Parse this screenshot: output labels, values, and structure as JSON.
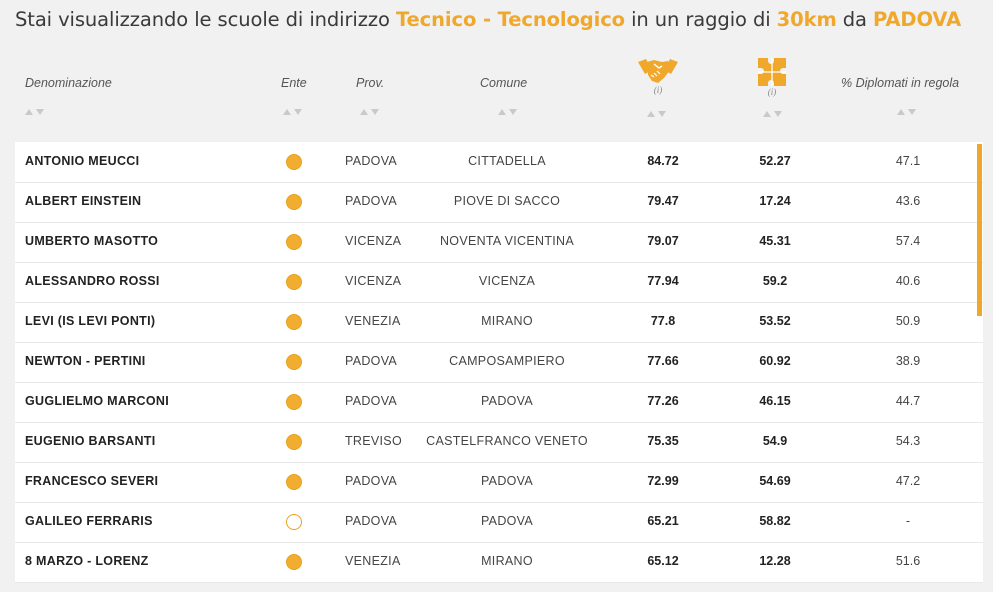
{
  "title": {
    "prefix": "Stai visualizzando le scuole di indirizzo ",
    "indirizzo": "Tecnico - Tecnologico",
    "mid": " in un raggio di ",
    "raggio": "30km",
    "da": " da ",
    "citta": "PADOVA"
  },
  "columns": {
    "denominazione": "Denominazione",
    "ente": "Ente",
    "prov": "Prov.",
    "comune": "Comune",
    "icon1_name": "handshake-icon",
    "icon1_info": "(i)",
    "icon2_name": "puzzle-icon",
    "icon2_info": "(i)",
    "diplomati": "% Diplomati in regola"
  },
  "colors": {
    "accent": "#f0a82c",
    "text": "#333333",
    "row_bg": "#ffffff"
  },
  "rows": [
    {
      "name": "ANTONIO MEUCCI",
      "ente": "filled",
      "prov": "PADOVA",
      "comune": "CITTADELLA",
      "v1": "84.72",
      "v2": "52.27",
      "v3": "47.1"
    },
    {
      "name": "ALBERT EINSTEIN",
      "ente": "filled",
      "prov": "PADOVA",
      "comune": "PIOVE DI SACCO",
      "v1": "79.47",
      "v2": "17.24",
      "v3": "43.6"
    },
    {
      "name": "UMBERTO MASOTTO",
      "ente": "filled",
      "prov": "VICENZA",
      "comune": "NOVENTA VICENTINA",
      "v1": "79.07",
      "v2": "45.31",
      "v3": "57.4"
    },
    {
      "name": "ALESSANDRO ROSSI",
      "ente": "filled",
      "prov": "VICENZA",
      "comune": "VICENZA",
      "v1": "77.94",
      "v2": "59.2",
      "v3": "40.6"
    },
    {
      "name": "LEVI (IS LEVI PONTI)",
      "ente": "filled",
      "prov": "VENEZIA",
      "comune": "MIRANO",
      "v1": "77.8",
      "v2": "53.52",
      "v3": "50.9"
    },
    {
      "name": "NEWTON - PERTINI",
      "ente": "filled",
      "prov": "PADOVA",
      "comune": "CAMPOSAMPIERO",
      "v1": "77.66",
      "v2": "60.92",
      "v3": "38.9"
    },
    {
      "name": "GUGLIELMO MARCONI",
      "ente": "filled",
      "prov": "PADOVA",
      "comune": "PADOVA",
      "v1": "77.26",
      "v2": "46.15",
      "v3": "44.7"
    },
    {
      "name": "EUGENIO BARSANTI",
      "ente": "filled",
      "prov": "TREVISO",
      "comune": "CASTELFRANCO VENETO",
      "v1": "75.35",
      "v2": "54.9",
      "v3": "54.3"
    },
    {
      "name": "FRANCESCO SEVERI",
      "ente": "filled",
      "prov": "PADOVA",
      "comune": "PADOVA",
      "v1": "72.99",
      "v2": "54.69",
      "v3": "47.2"
    },
    {
      "name": "GALILEO FERRARIS",
      "ente": "hollow",
      "prov": "PADOVA",
      "comune": "PADOVA",
      "v1": "65.21",
      "v2": "58.82",
      "v3": "-"
    },
    {
      "name": "8 MARZO - LORENZ",
      "ente": "filled",
      "prov": "VENEZIA",
      "comune": "MIRANO",
      "v1": "65.12",
      "v2": "12.28",
      "v3": "51.6"
    }
  ],
  "scroll_position": 0
}
